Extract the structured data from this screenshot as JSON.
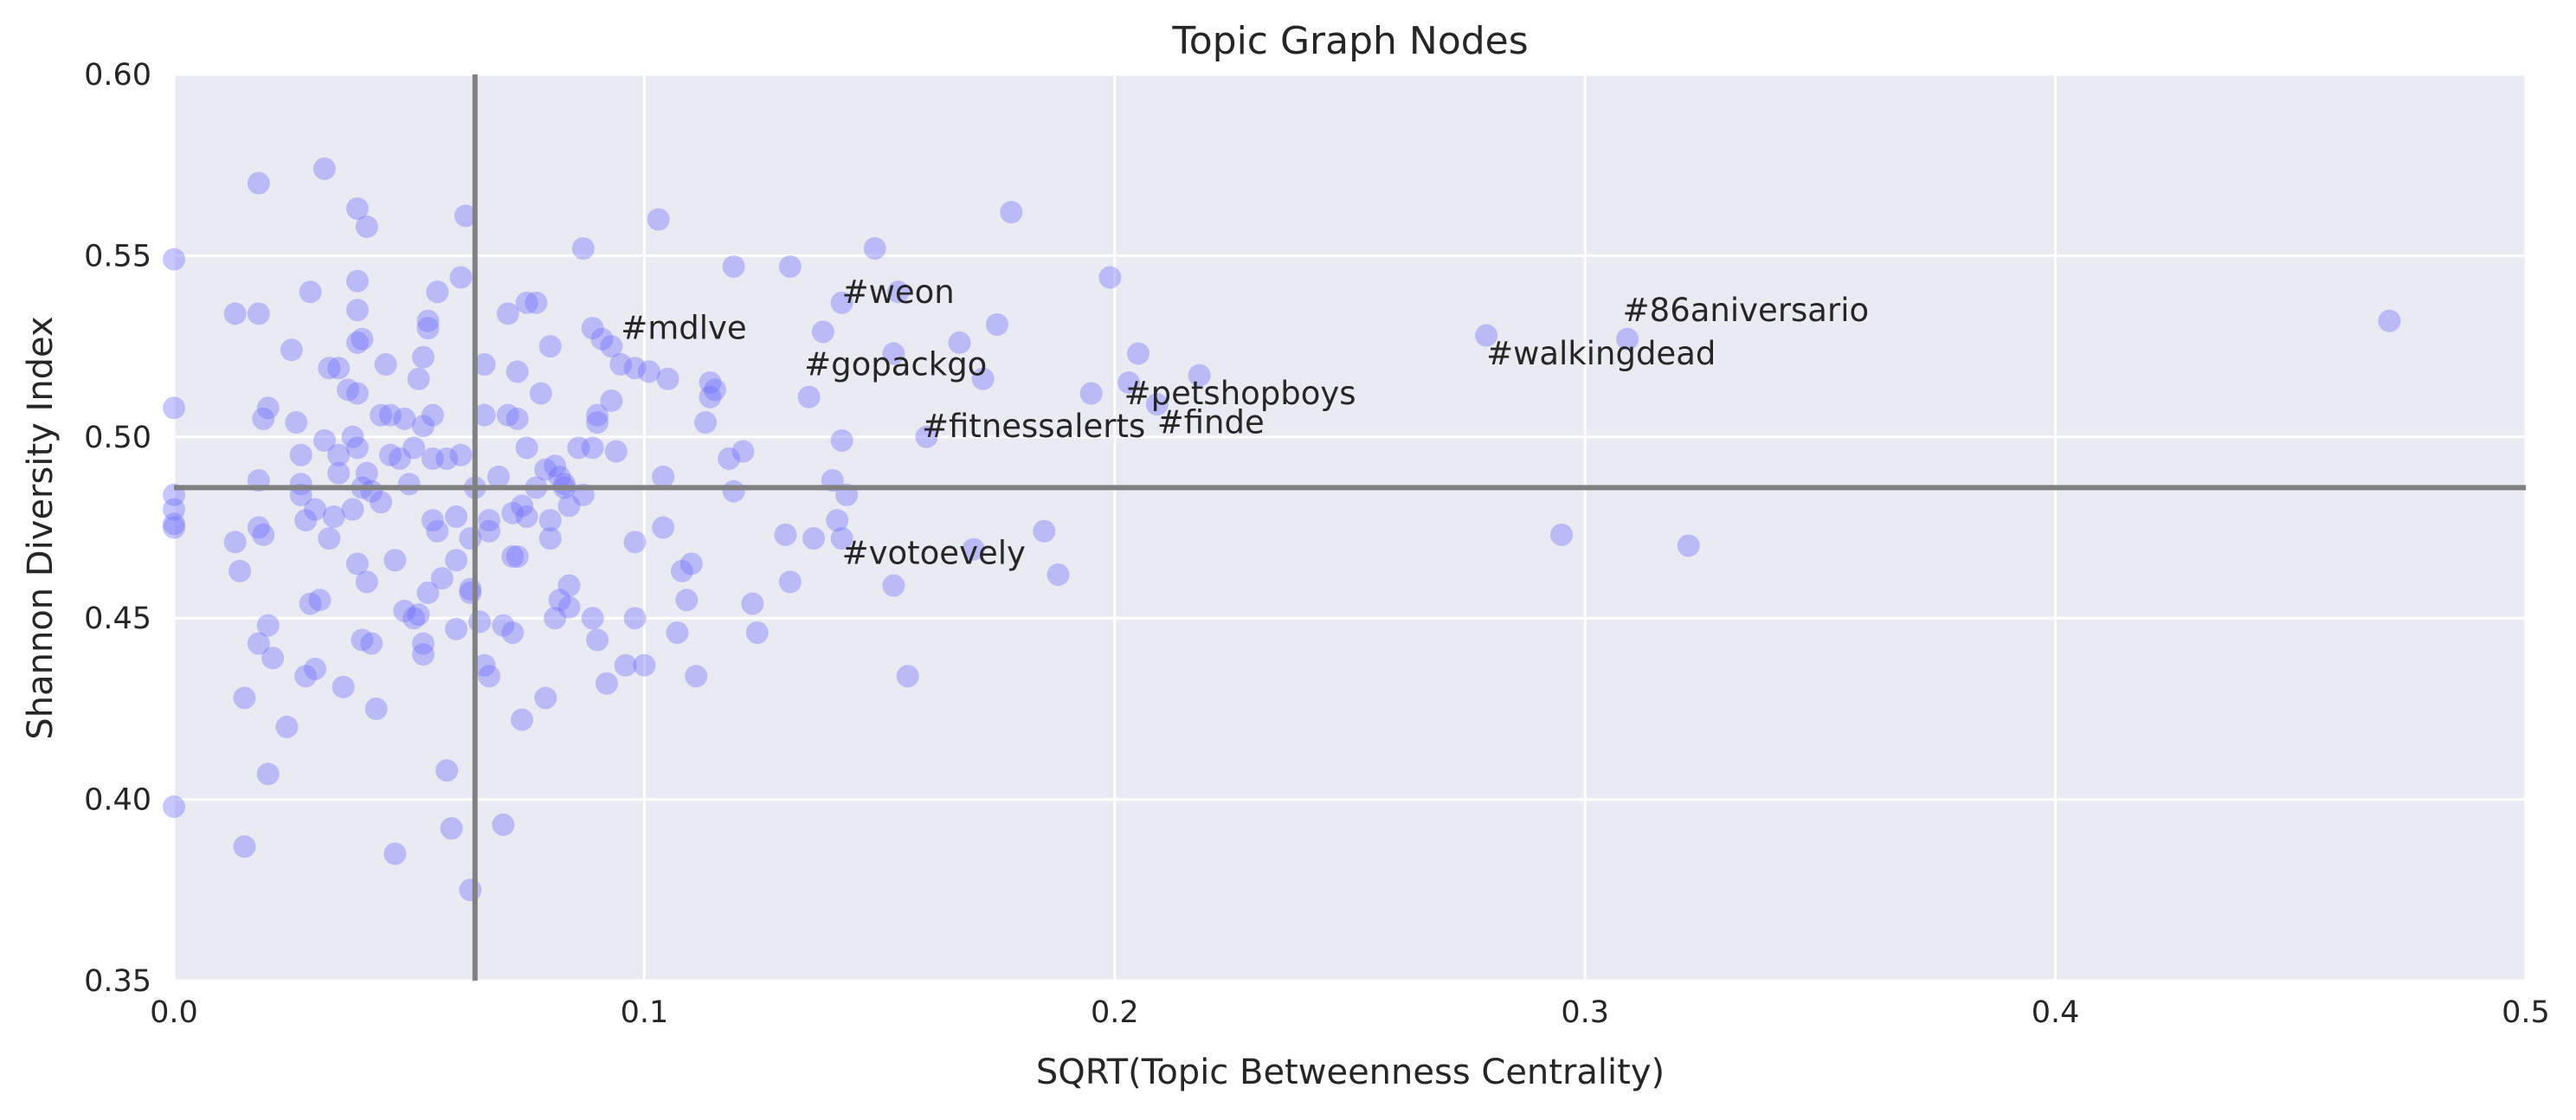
{
  "chart_data": {
    "type": "scatter",
    "title": "Topic Graph Nodes",
    "xlabel": "SQRT(Topic Betweenness Centrality)",
    "ylabel": "Shannon Diversity Index",
    "xlim": [
      0,
      0.5
    ],
    "ylim": [
      0.35,
      0.6
    ],
    "xticks": [
      0.0,
      0.1,
      0.2,
      0.3,
      0.4,
      0.5
    ],
    "xtick_labels": [
      "0.0",
      "0.1",
      "0.2",
      "0.3",
      "0.4",
      "0.5"
    ],
    "yticks": [
      0.35,
      0.4,
      0.45,
      0.5,
      0.55,
      0.6
    ],
    "ytick_labels": [
      "0.35",
      "0.40",
      "0.45",
      "0.50",
      "0.55",
      "0.60"
    ],
    "grid": true,
    "point_color": "#6b6bff",
    "background_color": "#eaeaf2",
    "reference_lines": {
      "x": 0.064,
      "y": 0.486,
      "color": "#808080"
    },
    "annotations": [
      {
        "text": "#mdlve",
        "x": 0.095,
        "y": 0.527
      },
      {
        "text": "#weon",
        "x": 0.142,
        "y": 0.537
      },
      {
        "text": "#gopackgo",
        "x": 0.134,
        "y": 0.517
      },
      {
        "text": "#fitnessalerts",
        "x": 0.159,
        "y": 0.5
      },
      {
        "text": "#petshopboys",
        "x": 0.202,
        "y": 0.509
      },
      {
        "text": "#finde",
        "x": 0.209,
        "y": 0.501
      },
      {
        "text": "#votoevely",
        "x": 0.142,
        "y": 0.465
      },
      {
        "text": "#walkingdead",
        "x": 0.279,
        "y": 0.52
      },
      {
        "text": "#86aniversario",
        "x": 0.308,
        "y": 0.532
      }
    ],
    "points": [
      [
        0.0,
        0.549
      ],
      [
        0.0,
        0.508
      ],
      [
        0.0,
        0.484
      ],
      [
        0.0,
        0.48
      ],
      [
        0.0,
        0.476
      ],
      [
        0.0,
        0.475
      ],
      [
        0.0,
        0.398
      ],
      [
        0.013,
        0.534
      ],
      [
        0.013,
        0.471
      ],
      [
        0.014,
        0.463
      ],
      [
        0.015,
        0.428
      ],
      [
        0.015,
        0.387
      ],
      [
        0.018,
        0.57
      ],
      [
        0.018,
        0.534
      ],
      [
        0.018,
        0.488
      ],
      [
        0.018,
        0.475
      ],
      [
        0.018,
        0.443
      ],
      [
        0.019,
        0.505
      ],
      [
        0.019,
        0.473
      ],
      [
        0.02,
        0.448
      ],
      [
        0.02,
        0.407
      ],
      [
        0.02,
        0.508
      ],
      [
        0.021,
        0.439
      ],
      [
        0.024,
        0.42
      ],
      [
        0.025,
        0.524
      ],
      [
        0.026,
        0.504
      ],
      [
        0.027,
        0.495
      ],
      [
        0.027,
        0.487
      ],
      [
        0.027,
        0.484
      ],
      [
        0.028,
        0.477
      ],
      [
        0.028,
        0.434
      ],
      [
        0.029,
        0.54
      ],
      [
        0.029,
        0.454
      ],
      [
        0.03,
        0.48
      ],
      [
        0.03,
        0.436
      ],
      [
        0.031,
        0.455
      ],
      [
        0.032,
        0.574
      ],
      [
        0.032,
        0.499
      ],
      [
        0.033,
        0.472
      ],
      [
        0.033,
        0.519
      ],
      [
        0.034,
        0.478
      ],
      [
        0.035,
        0.495
      ],
      [
        0.035,
        0.49
      ],
      [
        0.035,
        0.519
      ],
      [
        0.036,
        0.431
      ],
      [
        0.037,
        0.513
      ],
      [
        0.038,
        0.48
      ],
      [
        0.038,
        0.5
      ],
      [
        0.039,
        0.563
      ],
      [
        0.039,
        0.543
      ],
      [
        0.039,
        0.535
      ],
      [
        0.039,
        0.526
      ],
      [
        0.039,
        0.512
      ],
      [
        0.039,
        0.497
      ],
      [
        0.039,
        0.465
      ],
      [
        0.04,
        0.527
      ],
      [
        0.04,
        0.486
      ],
      [
        0.04,
        0.444
      ],
      [
        0.041,
        0.558
      ],
      [
        0.041,
        0.49
      ],
      [
        0.041,
        0.46
      ],
      [
        0.042,
        0.443
      ],
      [
        0.042,
        0.485
      ],
      [
        0.043,
        0.425
      ],
      [
        0.044,
        0.506
      ],
      [
        0.044,
        0.482
      ],
      [
        0.045,
        0.52
      ],
      [
        0.046,
        0.495
      ],
      [
        0.046,
        0.506
      ],
      [
        0.047,
        0.466
      ],
      [
        0.047,
        0.385
      ],
      [
        0.048,
        0.494
      ],
      [
        0.049,
        0.505
      ],
      [
        0.049,
        0.452
      ],
      [
        0.05,
        0.487
      ],
      [
        0.051,
        0.497
      ],
      [
        0.051,
        0.45
      ],
      [
        0.052,
        0.516
      ],
      [
        0.052,
        0.451
      ],
      [
        0.053,
        0.522
      ],
      [
        0.053,
        0.503
      ],
      [
        0.053,
        0.44
      ],
      [
        0.053,
        0.443
      ],
      [
        0.054,
        0.53
      ],
      [
        0.054,
        0.532
      ],
      [
        0.054,
        0.457
      ],
      [
        0.055,
        0.506
      ],
      [
        0.055,
        0.494
      ],
      [
        0.055,
        0.477
      ],
      [
        0.056,
        0.54
      ],
      [
        0.056,
        0.474
      ],
      [
        0.057,
        0.461
      ],
      [
        0.058,
        0.494
      ],
      [
        0.058,
        0.408
      ],
      [
        0.059,
        0.392
      ],
      [
        0.06,
        0.478
      ],
      [
        0.06,
        0.466
      ],
      [
        0.06,
        0.447
      ],
      [
        0.061,
        0.544
      ],
      [
        0.061,
        0.495
      ],
      [
        0.062,
        0.561
      ],
      [
        0.063,
        0.375
      ],
      [
        0.063,
        0.472
      ],
      [
        0.063,
        0.457
      ],
      [
        0.063,
        0.458
      ],
      [
        0.064,
        0.486
      ],
      [
        0.065,
        0.449
      ],
      [
        0.066,
        0.52
      ],
      [
        0.066,
        0.506
      ],
      [
        0.066,
        0.437
      ],
      [
        0.067,
        0.434
      ],
      [
        0.067,
        0.477
      ],
      [
        0.067,
        0.474
      ],
      [
        0.069,
        0.489
      ],
      [
        0.07,
        0.448
      ],
      [
        0.07,
        0.393
      ],
      [
        0.071,
        0.534
      ],
      [
        0.071,
        0.506
      ],
      [
        0.072,
        0.446
      ],
      [
        0.072,
        0.479
      ],
      [
        0.072,
        0.467
      ],
      [
        0.073,
        0.467
      ],
      [
        0.073,
        0.518
      ],
      [
        0.073,
        0.505
      ],
      [
        0.074,
        0.481
      ],
      [
        0.074,
        0.422
      ],
      [
        0.075,
        0.537
      ],
      [
        0.075,
        0.497
      ],
      [
        0.075,
        0.478
      ],
      [
        0.077,
        0.537
      ],
      [
        0.077,
        0.486
      ],
      [
        0.078,
        0.512
      ],
      [
        0.079,
        0.428
      ],
      [
        0.079,
        0.491
      ],
      [
        0.08,
        0.525
      ],
      [
        0.08,
        0.477
      ],
      [
        0.08,
        0.472
      ],
      [
        0.081,
        0.492
      ],
      [
        0.081,
        0.45
      ],
      [
        0.082,
        0.489
      ],
      [
        0.082,
        0.455
      ],
      [
        0.083,
        0.487
      ],
      [
        0.083,
        0.486
      ],
      [
        0.084,
        0.481
      ],
      [
        0.084,
        0.459
      ],
      [
        0.084,
        0.453
      ],
      [
        0.086,
        0.497
      ],
      [
        0.087,
        0.552
      ],
      [
        0.087,
        0.484
      ],
      [
        0.089,
        0.53
      ],
      [
        0.089,
        0.497
      ],
      [
        0.089,
        0.45
      ],
      [
        0.09,
        0.506
      ],
      [
        0.09,
        0.504
      ],
      [
        0.09,
        0.444
      ],
      [
        0.091,
        0.527
      ],
      [
        0.092,
        0.432
      ],
      [
        0.093,
        0.525
      ],
      [
        0.093,
        0.51
      ],
      [
        0.094,
        0.496
      ],
      [
        0.095,
        0.52
      ],
      [
        0.096,
        0.437
      ],
      [
        0.098,
        0.519
      ],
      [
        0.098,
        0.471
      ],
      [
        0.098,
        0.45
      ],
      [
        0.1,
        0.437
      ],
      [
        0.101,
        0.518
      ],
      [
        0.103,
        0.56
      ],
      [
        0.104,
        0.475
      ],
      [
        0.104,
        0.489
      ],
      [
        0.105,
        0.516
      ],
      [
        0.107,
        0.446
      ],
      [
        0.108,
        0.463
      ],
      [
        0.109,
        0.455
      ],
      [
        0.11,
        0.465
      ],
      [
        0.111,
        0.434
      ],
      [
        0.113,
        0.504
      ],
      [
        0.114,
        0.511
      ],
      [
        0.114,
        0.515
      ],
      [
        0.115,
        0.513
      ],
      [
        0.118,
        0.494
      ],
      [
        0.119,
        0.547
      ],
      [
        0.119,
        0.485
      ],
      [
        0.121,
        0.496
      ],
      [
        0.123,
        0.454
      ],
      [
        0.124,
        0.446
      ],
      [
        0.13,
        0.473
      ],
      [
        0.131,
        0.547
      ],
      [
        0.131,
        0.46
      ],
      [
        0.135,
        0.511
      ],
      [
        0.136,
        0.472
      ],
      [
        0.138,
        0.529
      ],
      [
        0.14,
        0.488
      ],
      [
        0.141,
        0.477
      ],
      [
        0.142,
        0.499
      ],
      [
        0.142,
        0.472
      ],
      [
        0.142,
        0.537
      ],
      [
        0.143,
        0.484
      ],
      [
        0.149,
        0.552
      ],
      [
        0.153,
        0.459
      ],
      [
        0.153,
        0.523
      ],
      [
        0.154,
        0.54
      ],
      [
        0.156,
        0.434
      ],
      [
        0.16,
        0.5
      ],
      [
        0.167,
        0.526
      ],
      [
        0.17,
        0.469
      ],
      [
        0.172,
        0.516
      ],
      [
        0.175,
        0.531
      ],
      [
        0.178,
        0.562
      ],
      [
        0.185,
        0.474
      ],
      [
        0.188,
        0.462
      ],
      [
        0.195,
        0.512
      ],
      [
        0.199,
        0.544
      ],
      [
        0.203,
        0.515
      ],
      [
        0.205,
        0.523
      ],
      [
        0.209,
        0.509
      ],
      [
        0.218,
        0.517
      ],
      [
        0.279,
        0.528
      ],
      [
        0.295,
        0.473
      ],
      [
        0.309,
        0.527
      ],
      [
        0.322,
        0.47
      ],
      [
        0.471,
        0.532
      ]
    ]
  }
}
